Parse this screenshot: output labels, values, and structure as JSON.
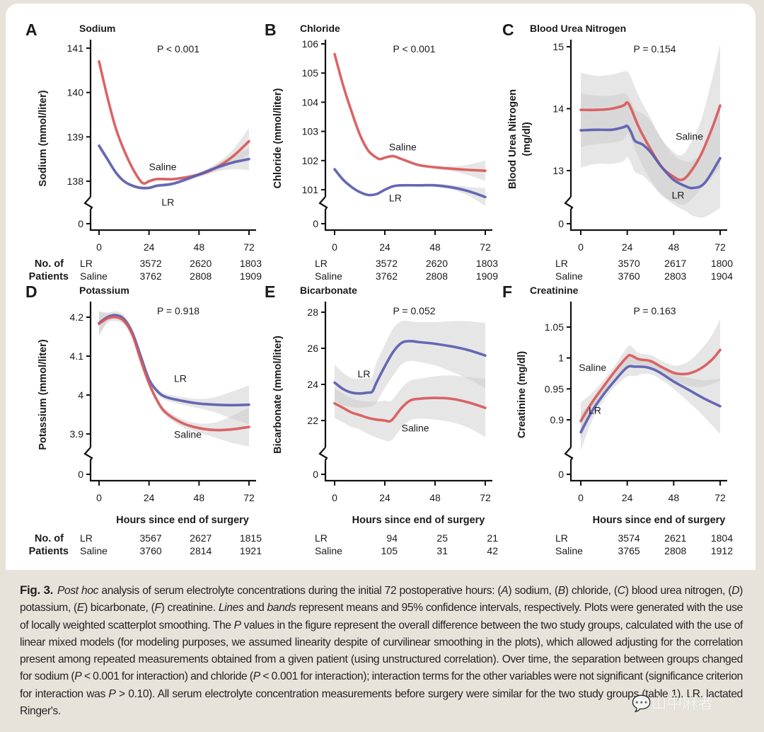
{
  "figure": {
    "caption_label": "Fig. 3.",
    "caption_segments": [
      {
        "t": "Post hoc",
        "i": true
      },
      {
        "t": " analysis of serum electrolyte concentrations during the initial 72 postoperative hours: ("
      },
      {
        "t": "A",
        "i": true
      },
      {
        "t": ") sodium, ("
      },
      {
        "t": "B",
        "i": true
      },
      {
        "t": ") chloride, ("
      },
      {
        "t": "C",
        "i": true
      },
      {
        "t": ") blood urea nitrogen, ("
      },
      {
        "t": "D",
        "i": true
      },
      {
        "t": ") potassium, ("
      },
      {
        "t": "E",
        "i": true
      },
      {
        "t": ") bicarbonate, ("
      },
      {
        "t": "F",
        "i": true
      },
      {
        "t": ") creatinine. "
      },
      {
        "t": "Lines",
        "i": true
      },
      {
        "t": " and "
      },
      {
        "t": "bands",
        "i": true
      },
      {
        "t": " represent means and 95% confidence intervals, respectively. Plots were generated with the use of locally weighted scatterplot smoothing. The "
      },
      {
        "t": "P",
        "i": true
      },
      {
        "t": " values in the figure represent the overall difference between the two study groups, calculated with the use of linear mixed models (for modeling purposes, we assumed linearity despite of curvilinear smoothing in the plots), which allowed adjusting for the correlation present among repeated measurements obtained from a given patient (using unstructured correlation). Over time, the separation between groups changed for sodium ("
      },
      {
        "t": "P",
        "i": true
      },
      {
        "t": " < 0.001 for interaction) and chloride ("
      },
      {
        "t": "P",
        "i": true
      },
      {
        "t": " < 0.001 for interaction); interaction terms for the other variables were not significant (significance criterion for interaction was "
      },
      {
        "t": "P",
        "i": true
      },
      {
        "t": " > 0.10). All serum electrolyte concentration measurements before surgery were similar for the two study groups (table 1). LR, lactated Ringer's."
      }
    ],
    "watermark": "山中麻者",
    "colors": {
      "saline": "#d9585a",
      "lr": "#5a5cb0",
      "band": "#c8c8c8",
      "frame": "#e7e3db"
    },
    "xlabel": "Hours since end of surgery",
    "npat_head_1": "No. of",
    "npat_head_2": "Patients",
    "group_lr": "LR",
    "group_saline": "Saline"
  },
  "chart_data": [
    {
      "type": "line",
      "letter": "A",
      "title": "Sodium",
      "ylabel": "Sodium (mmol/liter)",
      "pvalue": "P < 0.001",
      "x_ticks": [
        0,
        24,
        48,
        72
      ],
      "xlim": [
        0,
        72
      ],
      "y_ticks": [
        138,
        139,
        140,
        141
      ],
      "ylim": [
        137.2,
        141.3
      ],
      "y_break_zero": true,
      "show_xlabel": false,
      "show_npat_head": true,
      "labels": {
        "Saline": [
          24,
          138.25
        ],
        "LR": [
          30,
          137.45
        ]
      },
      "series": [
        {
          "name": "Saline",
          "x": [
            0,
            4,
            8,
            12,
            16,
            20,
            22,
            24,
            28,
            36,
            48,
            56,
            64,
            72
          ],
          "y": [
            140.7,
            139.9,
            139.2,
            138.7,
            138.3,
            138.0,
            137.95,
            138.0,
            138.05,
            138.05,
            138.15,
            138.3,
            138.55,
            138.9
          ],
          "band": [
            0.05,
            0.04,
            0.04,
            0.04,
            0.03,
            0.03,
            0.03,
            0.03,
            0.03,
            0.03,
            0.05,
            0.08,
            0.15,
            0.3
          ]
        },
        {
          "name": "LR",
          "x": [
            0,
            4,
            8,
            12,
            16,
            20,
            24,
            28,
            36,
            48,
            56,
            64,
            72
          ],
          "y": [
            138.8,
            138.5,
            138.2,
            138.0,
            137.9,
            137.85,
            137.85,
            137.9,
            137.95,
            138.15,
            138.3,
            138.42,
            138.5
          ],
          "band": [
            0.08,
            0.06,
            0.05,
            0.04,
            0.04,
            0.04,
            0.04,
            0.04,
            0.04,
            0.05,
            0.08,
            0.15,
            0.25
          ]
        }
      ],
      "n_patients": {
        "LR": [
          3572,
          2620,
          1803
        ],
        "Saline": [
          3762,
          2808,
          1909
        ]
      }
    },
    {
      "type": "line",
      "letter": "B",
      "title": "Chloride",
      "ylabel": "Chloride (mmol/liter)",
      "pvalue": "P < 0.001",
      "x_ticks": [
        0,
        24,
        48,
        72
      ],
      "xlim": [
        0,
        72
      ],
      "y_ticks": [
        101,
        102,
        103,
        104,
        105,
        106
      ],
      "ylim": [
        100.2,
        106.2
      ],
      "y_break_zero": true,
      "show_xlabel": false,
      "show_npat_head": false,
      "labels": {
        "Saline": [
          26,
          102.35
        ],
        "LR": [
          26,
          100.6
        ]
      },
      "series": [
        {
          "name": "Saline",
          "x": [
            0,
            4,
            8,
            12,
            16,
            20,
            22,
            24,
            28,
            32,
            40,
            48,
            56,
            64,
            72
          ],
          "y": [
            105.65,
            104.6,
            103.7,
            102.9,
            102.35,
            102.1,
            102.05,
            102.1,
            102.15,
            102.05,
            101.85,
            101.77,
            101.72,
            101.68,
            101.65
          ],
          "band": [
            0.06,
            0.05,
            0.05,
            0.04,
            0.04,
            0.04,
            0.04,
            0.04,
            0.04,
            0.04,
            0.04,
            0.05,
            0.08,
            0.18,
            0.35
          ]
        },
        {
          "name": "LR",
          "x": [
            0,
            4,
            8,
            12,
            16,
            20,
            24,
            28,
            32,
            40,
            48,
            56,
            64,
            72
          ],
          "y": [
            101.7,
            101.35,
            101.1,
            100.92,
            100.82,
            100.85,
            101.0,
            101.12,
            101.15,
            101.15,
            101.15,
            101.08,
            100.95,
            100.75
          ],
          "band": [
            0.06,
            0.05,
            0.04,
            0.04,
            0.04,
            0.04,
            0.04,
            0.04,
            0.04,
            0.04,
            0.05,
            0.08,
            0.15,
            0.3
          ]
        }
      ],
      "n_patients": {
        "LR": [
          3572,
          2620,
          1803
        ],
        "Saline": [
          3762,
          2808,
          1909
        ]
      }
    },
    {
      "type": "line",
      "letter": "C",
      "title": "Blood Urea Nitrogen",
      "ylabel": "Blood Urea Nitrogen (mg/dl)",
      "ylabel_lines": [
        "Blood Urea Nitrogen",
        "(mg/dl)"
      ],
      "pvalue": "P = 0.154",
      "x_ticks": [
        0,
        24,
        48,
        72
      ],
      "xlim": [
        0,
        72
      ],
      "y_ticks": [
        13,
        14,
        15
      ],
      "ylim": [
        12.2,
        15.1
      ],
      "y_break_zero": true,
      "show_xlabel": false,
      "show_npat_head": false,
      "labels": {
        "Saline": [
          49,
          13.5
        ],
        "LR": [
          47,
          12.55
        ]
      },
      "series": [
        {
          "name": "Saline",
          "x": [
            0,
            8,
            16,
            22,
            24,
            26,
            30,
            36,
            42,
            48,
            52,
            56,
            62,
            68,
            72
          ],
          "y": [
            13.98,
            13.98,
            14.0,
            14.05,
            14.1,
            14.0,
            13.7,
            13.35,
            13.05,
            12.9,
            12.85,
            12.95,
            13.25,
            13.7,
            14.05
          ],
          "band": [
            0.6,
            0.55,
            0.55,
            0.55,
            0.5,
            0.5,
            0.5,
            0.5,
            0.45,
            0.4,
            0.4,
            0.45,
            0.55,
            0.8,
            1.0
          ]
        },
        {
          "name": "LR",
          "x": [
            0,
            8,
            16,
            22,
            24,
            26,
            28,
            32,
            36,
            42,
            48,
            54,
            58,
            64,
            72
          ],
          "y": [
            13.65,
            13.66,
            13.66,
            13.7,
            13.72,
            13.62,
            13.48,
            13.42,
            13.3,
            13.05,
            12.85,
            12.75,
            12.72,
            12.8,
            13.2
          ],
          "band": [
            0.6,
            0.55,
            0.55,
            0.55,
            0.5,
            0.5,
            0.5,
            0.5,
            0.5,
            0.45,
            0.4,
            0.4,
            0.45,
            0.55,
            0.8
          ]
        }
      ],
      "n_patients": {
        "LR": [
          3570,
          2617,
          1800
        ],
        "Saline": [
          3760,
          2803,
          1904
        ]
      }
    },
    {
      "type": "line",
      "letter": "D",
      "title": "Potassium",
      "ylabel": "Potassium (mmol/liter)",
      "pvalue": "P = 0.918",
      "x_ticks": [
        0,
        24,
        48,
        72
      ],
      "xlim": [
        0,
        72
      ],
      "y_ticks": [
        3.9,
        4.0,
        4.1,
        4.2
      ],
      "ylim": [
        3.85,
        4.22
      ],
      "y_break_zero": true,
      "show_xlabel": true,
      "show_npat_head": true,
      "labels": {
        "LR": [
          36,
          4.034
        ],
        "Saline": [
          36,
          3.89
        ]
      },
      "series": [
        {
          "name": "LR",
          "x": [
            0,
            4,
            8,
            12,
            16,
            20,
            24,
            28,
            32,
            40,
            48,
            56,
            64,
            72
          ],
          "y": [
            4.185,
            4.2,
            4.205,
            4.195,
            4.16,
            4.1,
            4.04,
            4.01,
            3.995,
            3.985,
            3.978,
            3.975,
            3.974,
            3.975
          ],
          "band": [
            0.03,
            0.012,
            0.01,
            0.01,
            0.01,
            0.01,
            0.008,
            0.008,
            0.008,
            0.01,
            0.012,
            0.02,
            0.035,
            0.05
          ]
        },
        {
          "name": "Saline",
          "x": [
            0,
            4,
            8,
            12,
            16,
            20,
            24,
            28,
            32,
            40,
            48,
            56,
            64,
            72
          ],
          "y": [
            4.183,
            4.197,
            4.2,
            4.19,
            4.155,
            4.09,
            4.03,
            3.985,
            3.955,
            3.928,
            3.915,
            3.91,
            3.912,
            3.918
          ],
          "band": [
            0.03,
            0.012,
            0.01,
            0.01,
            0.01,
            0.01,
            0.008,
            0.008,
            0.008,
            0.01,
            0.012,
            0.02,
            0.035,
            0.05
          ]
        }
      ],
      "n_patients": {
        "LR": [
          3567,
          2627,
          1815
        ],
        "Saline": [
          3760,
          2814,
          1921
        ]
      }
    },
    {
      "type": "line",
      "letter": "E",
      "title": "Bicarbonate",
      "ylabel": "Bicarbonate (mmol/liter)",
      "pvalue": "P = 0.052",
      "x_ticks": [
        0,
        24,
        48,
        72
      ],
      "xlim": [
        0,
        72
      ],
      "y_ticks": [
        22,
        24,
        26,
        28
      ],
      "ylim": [
        20.0,
        28.2
      ],
      "y_break_zero": true,
      "show_xlabel": true,
      "show_npat_head": false,
      "labels": {
        "LR": [
          11,
          24.4
        ],
        "Saline": [
          32,
          21.4
        ]
      },
      "series": [
        {
          "name": "LR",
          "x": [
            0,
            4,
            8,
            12,
            16,
            18,
            20,
            24,
            28,
            32,
            36,
            40,
            48,
            56,
            64,
            72
          ],
          "y": [
            24.1,
            23.75,
            23.55,
            23.5,
            23.55,
            23.6,
            24.1,
            25.0,
            25.8,
            26.3,
            26.4,
            26.35,
            26.25,
            26.1,
            25.9,
            25.6
          ],
          "band": [
            1.0,
            0.9,
            0.8,
            0.8,
            0.8,
            0.8,
            1.1,
            1.2,
            1.3,
            1.2,
            1.1,
            1.1,
            1.2,
            1.4,
            1.6,
            1.8
          ]
        },
        {
          "name": "Saline",
          "x": [
            0,
            4,
            8,
            12,
            16,
            20,
            24,
            26,
            28,
            32,
            36,
            40,
            48,
            56,
            64,
            72
          ],
          "y": [
            22.95,
            22.7,
            22.45,
            22.3,
            22.15,
            22.05,
            22.0,
            21.95,
            22.1,
            22.7,
            23.1,
            23.2,
            23.25,
            23.2,
            23.0,
            22.7
          ],
          "band": [
            0.8,
            0.8,
            0.8,
            0.8,
            0.9,
            1.0,
            1.1,
            1.1,
            1.1,
            1.1,
            1.1,
            1.1,
            1.2,
            1.3,
            1.4,
            1.6
          ]
        }
      ],
      "n_patients": {
        "LR": [
          94,
          25,
          21
        ],
        "Saline": [
          105,
          31,
          42
        ]
      }
    },
    {
      "type": "line",
      "letter": "F",
      "title": "Creatinine",
      "ylabel": "Creatinine (mg/dl)",
      "pvalue": "P = 0.163",
      "x_ticks": [
        0,
        24,
        48,
        72
      ],
      "xlim": [
        0,
        72
      ],
      "y_ticks": [
        0.9,
        0.95,
        1.0,
        1.05
      ],
      "ylim": [
        0.86,
        1.075
      ],
      "y_break_zero": true,
      "y_tick_labels": [
        "0.9",
        "0.95",
        "1",
        "1.05"
      ],
      "show_xlabel": true,
      "show_npat_head": false,
      "labels": {
        "Saline": [
          -1,
          0.979
        ],
        "LR": [
          4,
          0.91
        ]
      },
      "series": [
        {
          "name": "Saline",
          "x": [
            0,
            6,
            12,
            18,
            24,
            26,
            30,
            36,
            42,
            48,
            52,
            56,
            62,
            68,
            72
          ],
          "y": [
            0.898,
            0.929,
            0.955,
            0.98,
            1.002,
            1.004,
            0.998,
            0.995,
            0.985,
            0.976,
            0.974,
            0.975,
            0.983,
            0.998,
            1.013
          ],
          "band": [
            0.03,
            0.015,
            0.01,
            0.01,
            0.015,
            0.015,
            0.01,
            0.01,
            0.01,
            0.012,
            0.015,
            0.02,
            0.03,
            0.04,
            0.05
          ]
        },
        {
          "name": "LR",
          "x": [
            0,
            6,
            12,
            18,
            24,
            28,
            34,
            40,
            48,
            56,
            64,
            72
          ],
          "y": [
            0.88,
            0.915,
            0.942,
            0.965,
            0.985,
            0.986,
            0.985,
            0.978,
            0.962,
            0.948,
            0.934,
            0.922
          ],
          "band": [
            0.03,
            0.015,
            0.01,
            0.01,
            0.015,
            0.015,
            0.01,
            0.01,
            0.012,
            0.02,
            0.03,
            0.045
          ]
        }
      ],
      "n_patients": {
        "LR": [
          3574,
          2621,
          1804
        ],
        "Saline": [
          3765,
          2808,
          1912
        ]
      }
    }
  ]
}
